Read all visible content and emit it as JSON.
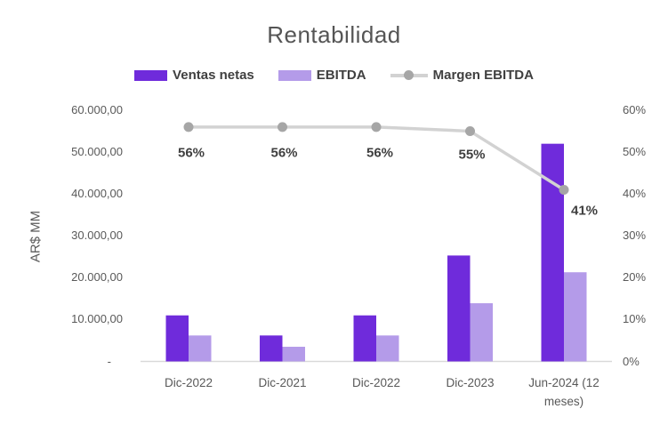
{
  "title": "Rentabilidad",
  "colors": {
    "ventas_netas": "#6F2BDB",
    "ebitda": "#B49BE9",
    "margen_line": "#D2D2D2",
    "margen_marker": "#A6A6A6",
    "title_text": "#555555",
    "axis_text": "#595959",
    "legend_text": "#404040",
    "data_label_text": "#3F3F3F",
    "baseline": "#D9D9D9"
  },
  "legend": {
    "items": [
      {
        "label": "Ventas netas",
        "style": "swatch"
      },
      {
        "label": "EBITDA",
        "style": "swatch"
      },
      {
        "label": "Margen EBITDA",
        "style": "line_marker"
      }
    ]
  },
  "chart_data": {
    "type": "combo: bar + line",
    "categories": [
      "Dic-2022",
      "Dic-2021",
      "Dic-2022",
      "Dic-2023",
      "Jun-2024 (12 meses)"
    ],
    "series": [
      {
        "name": "Ventas netas",
        "type": "bar",
        "axis": "left",
        "values": [
          11000,
          6200,
          11000,
          25300,
          52000
        ]
      },
      {
        "name": "EBITDA",
        "type": "bar",
        "axis": "left",
        "values": [
          6200,
          3500,
          6200,
          13900,
          21300
        ]
      },
      {
        "name": "Margen EBITDA",
        "type": "line",
        "axis": "right",
        "values": [
          56,
          56,
          56,
          55,
          41
        ],
        "point_labels": [
          "56%",
          "56%",
          "56%",
          "55%",
          "41%"
        ]
      }
    ],
    "left_axis": {
      "title": "AR$ MM",
      "min": 0,
      "max": 60000,
      "tick_labels": [
        "60.000,00",
        "50.000,00",
        "40.000,00",
        "30.000,00",
        "20.000,00",
        "10.000,00",
        "-"
      ]
    },
    "right_axis": {
      "min": 0,
      "max": 60,
      "unit": "%",
      "tick_labels": [
        "60%",
        "50%",
        "40%",
        "30%",
        "20%",
        "10%",
        "0%"
      ]
    },
    "grid": false,
    "legend_position": "top"
  }
}
